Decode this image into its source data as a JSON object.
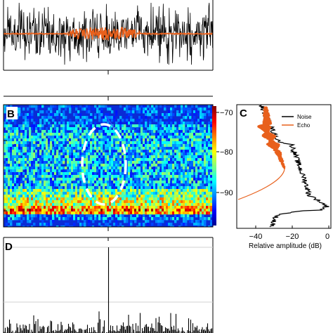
{
  "panels": {
    "a": {
      "letter": ""
    },
    "b": {
      "letter": "B"
    },
    "c": {
      "letter": "C"
    },
    "d": {
      "letter": "D"
    }
  },
  "chart_data": [
    {
      "panel": "A",
      "type": "line",
      "series": [
        {
          "name": "",
          "description_color": "#000000",
          "envelope_amplitude": 1.0
        },
        {
          "name": "",
          "description_color": "#e8601c",
          "envelope_amplitude_peak": 0.25
        }
      ]
    },
    {
      "panel": "B",
      "type": "heatmap",
      "colormap": "jet",
      "colorbar_ticks": [
        "−70",
        "−80",
        "−90"
      ],
      "colorbar_range": [
        -95,
        -68
      ],
      "annotation": "dashed white ellipse"
    },
    {
      "panel": "C",
      "type": "line",
      "xlabel": "Relative amplitude (dB)",
      "xticks": [
        "−40",
        "−20",
        "0"
      ],
      "xlim": [
        -48,
        2
      ],
      "legend_placement": "top-right",
      "series": [
        {
          "name": "Noise",
          "color": "#000000"
        },
        {
          "name": "Echo",
          "color": "#e8601c"
        }
      ]
    },
    {
      "panel": "D",
      "type": "line",
      "series": [
        {
          "name": "",
          "color": "#000000",
          "peak_relative_height": 1.0,
          "peak_position_fraction": 0.5
        }
      ]
    }
  ]
}
